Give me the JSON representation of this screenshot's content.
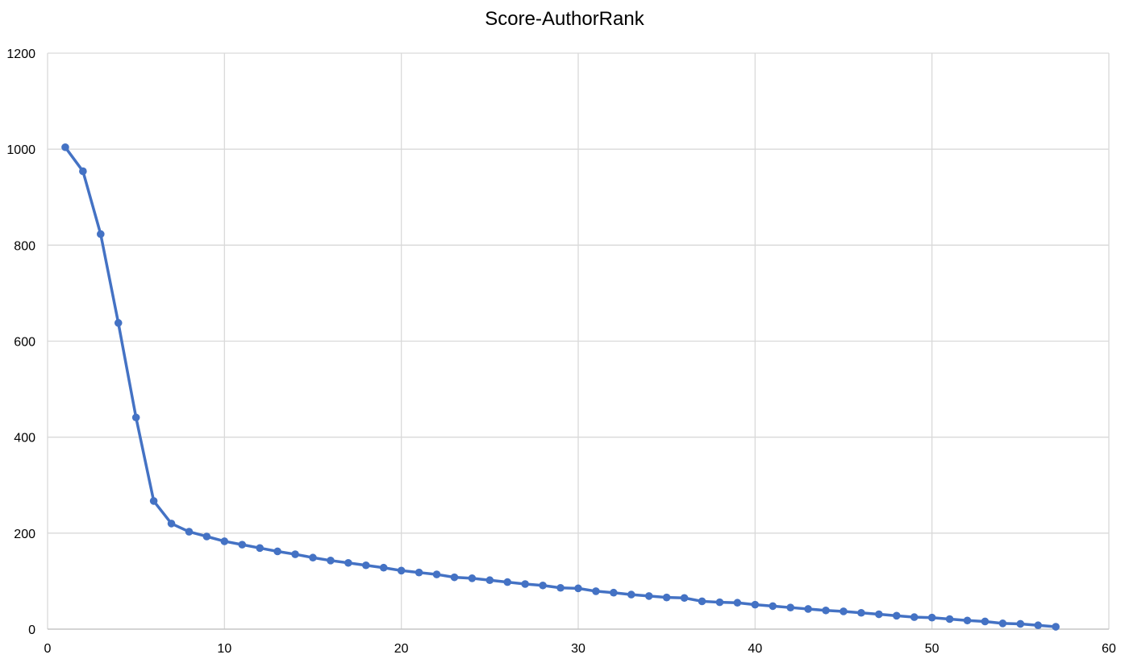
{
  "chart_data": {
    "type": "line",
    "title": "Score-AuthorRank",
    "xlabel": "",
    "ylabel": "",
    "xlim": [
      0,
      60
    ],
    "ylim": [
      0,
      1200
    ],
    "x_ticks": [
      0,
      10,
      20,
      30,
      40,
      50,
      60
    ],
    "y_ticks": [
      0,
      200,
      400,
      600,
      800,
      1000,
      1200
    ],
    "grid": true,
    "legend": "none",
    "marker": "circle",
    "colors": {
      "series": "#4472C4",
      "grid": "#D9D9D9"
    },
    "series": [
      {
        "x": [
          1,
          2,
          3,
          4,
          5,
          6,
          7,
          8,
          9,
          10,
          11,
          12,
          13,
          14,
          15,
          16,
          17,
          18,
          19,
          20,
          21,
          22,
          23,
          24,
          25,
          26,
          27,
          28,
          29,
          30,
          31,
          32,
          33,
          34,
          35,
          36,
          37,
          38,
          39,
          40,
          41,
          42,
          43,
          44,
          45,
          46,
          47,
          48,
          49,
          50,
          51,
          52,
          53,
          54,
          55,
          56,
          57
        ],
        "values": [
          1004,
          954,
          823,
          638,
          441,
          267,
          220,
          203,
          193,
          183,
          176,
          169,
          162,
          156,
          149,
          143,
          138,
          133,
          128,
          122,
          118,
          114,
          108,
          106,
          102,
          98,
          94,
          91,
          86,
          85,
          79,
          76,
          72,
          69,
          66,
          65,
          58,
          56,
          55,
          51,
          48,
          45,
          42,
          39,
          37,
          34,
          31,
          28,
          25,
          24,
          21,
          18,
          16,
          12,
          11,
          8,
          5
        ]
      }
    ]
  }
}
